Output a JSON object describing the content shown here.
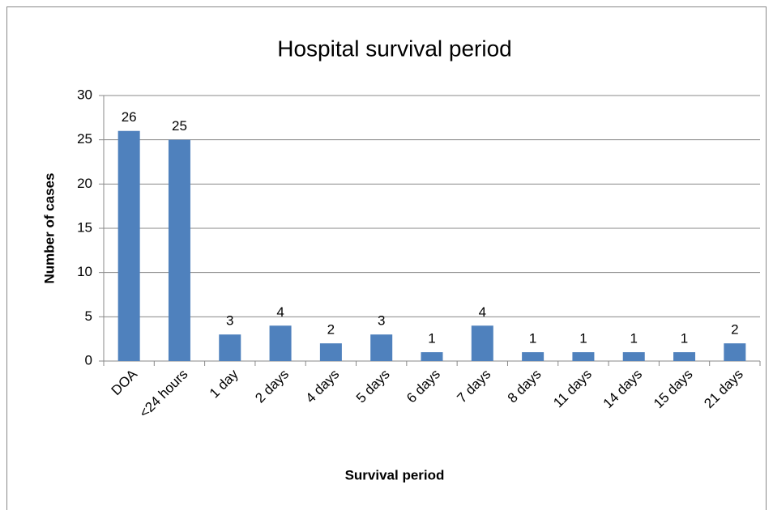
{
  "chart_data": {
    "type": "bar",
    "title": "Hospital survival period",
    "x_label": "Survival period",
    "y_label": "Number of cases",
    "categories": [
      "DOA",
      "<24 hours",
      "1 day",
      "2 days",
      "4 days",
      "5 days",
      "6 days",
      "7 days",
      "8 days",
      "11 days",
      "14 days",
      "15 days",
      "21 days"
    ],
    "values": [
      26,
      25,
      3,
      4,
      2,
      3,
      1,
      4,
      1,
      1,
      1,
      1,
      2
    ],
    "color": "#4f81bd",
    "ylim": [
      0,
      30
    ],
    "yticks": [
      0,
      5,
      10,
      15,
      20,
      25,
      30
    ],
    "grid": true
  }
}
